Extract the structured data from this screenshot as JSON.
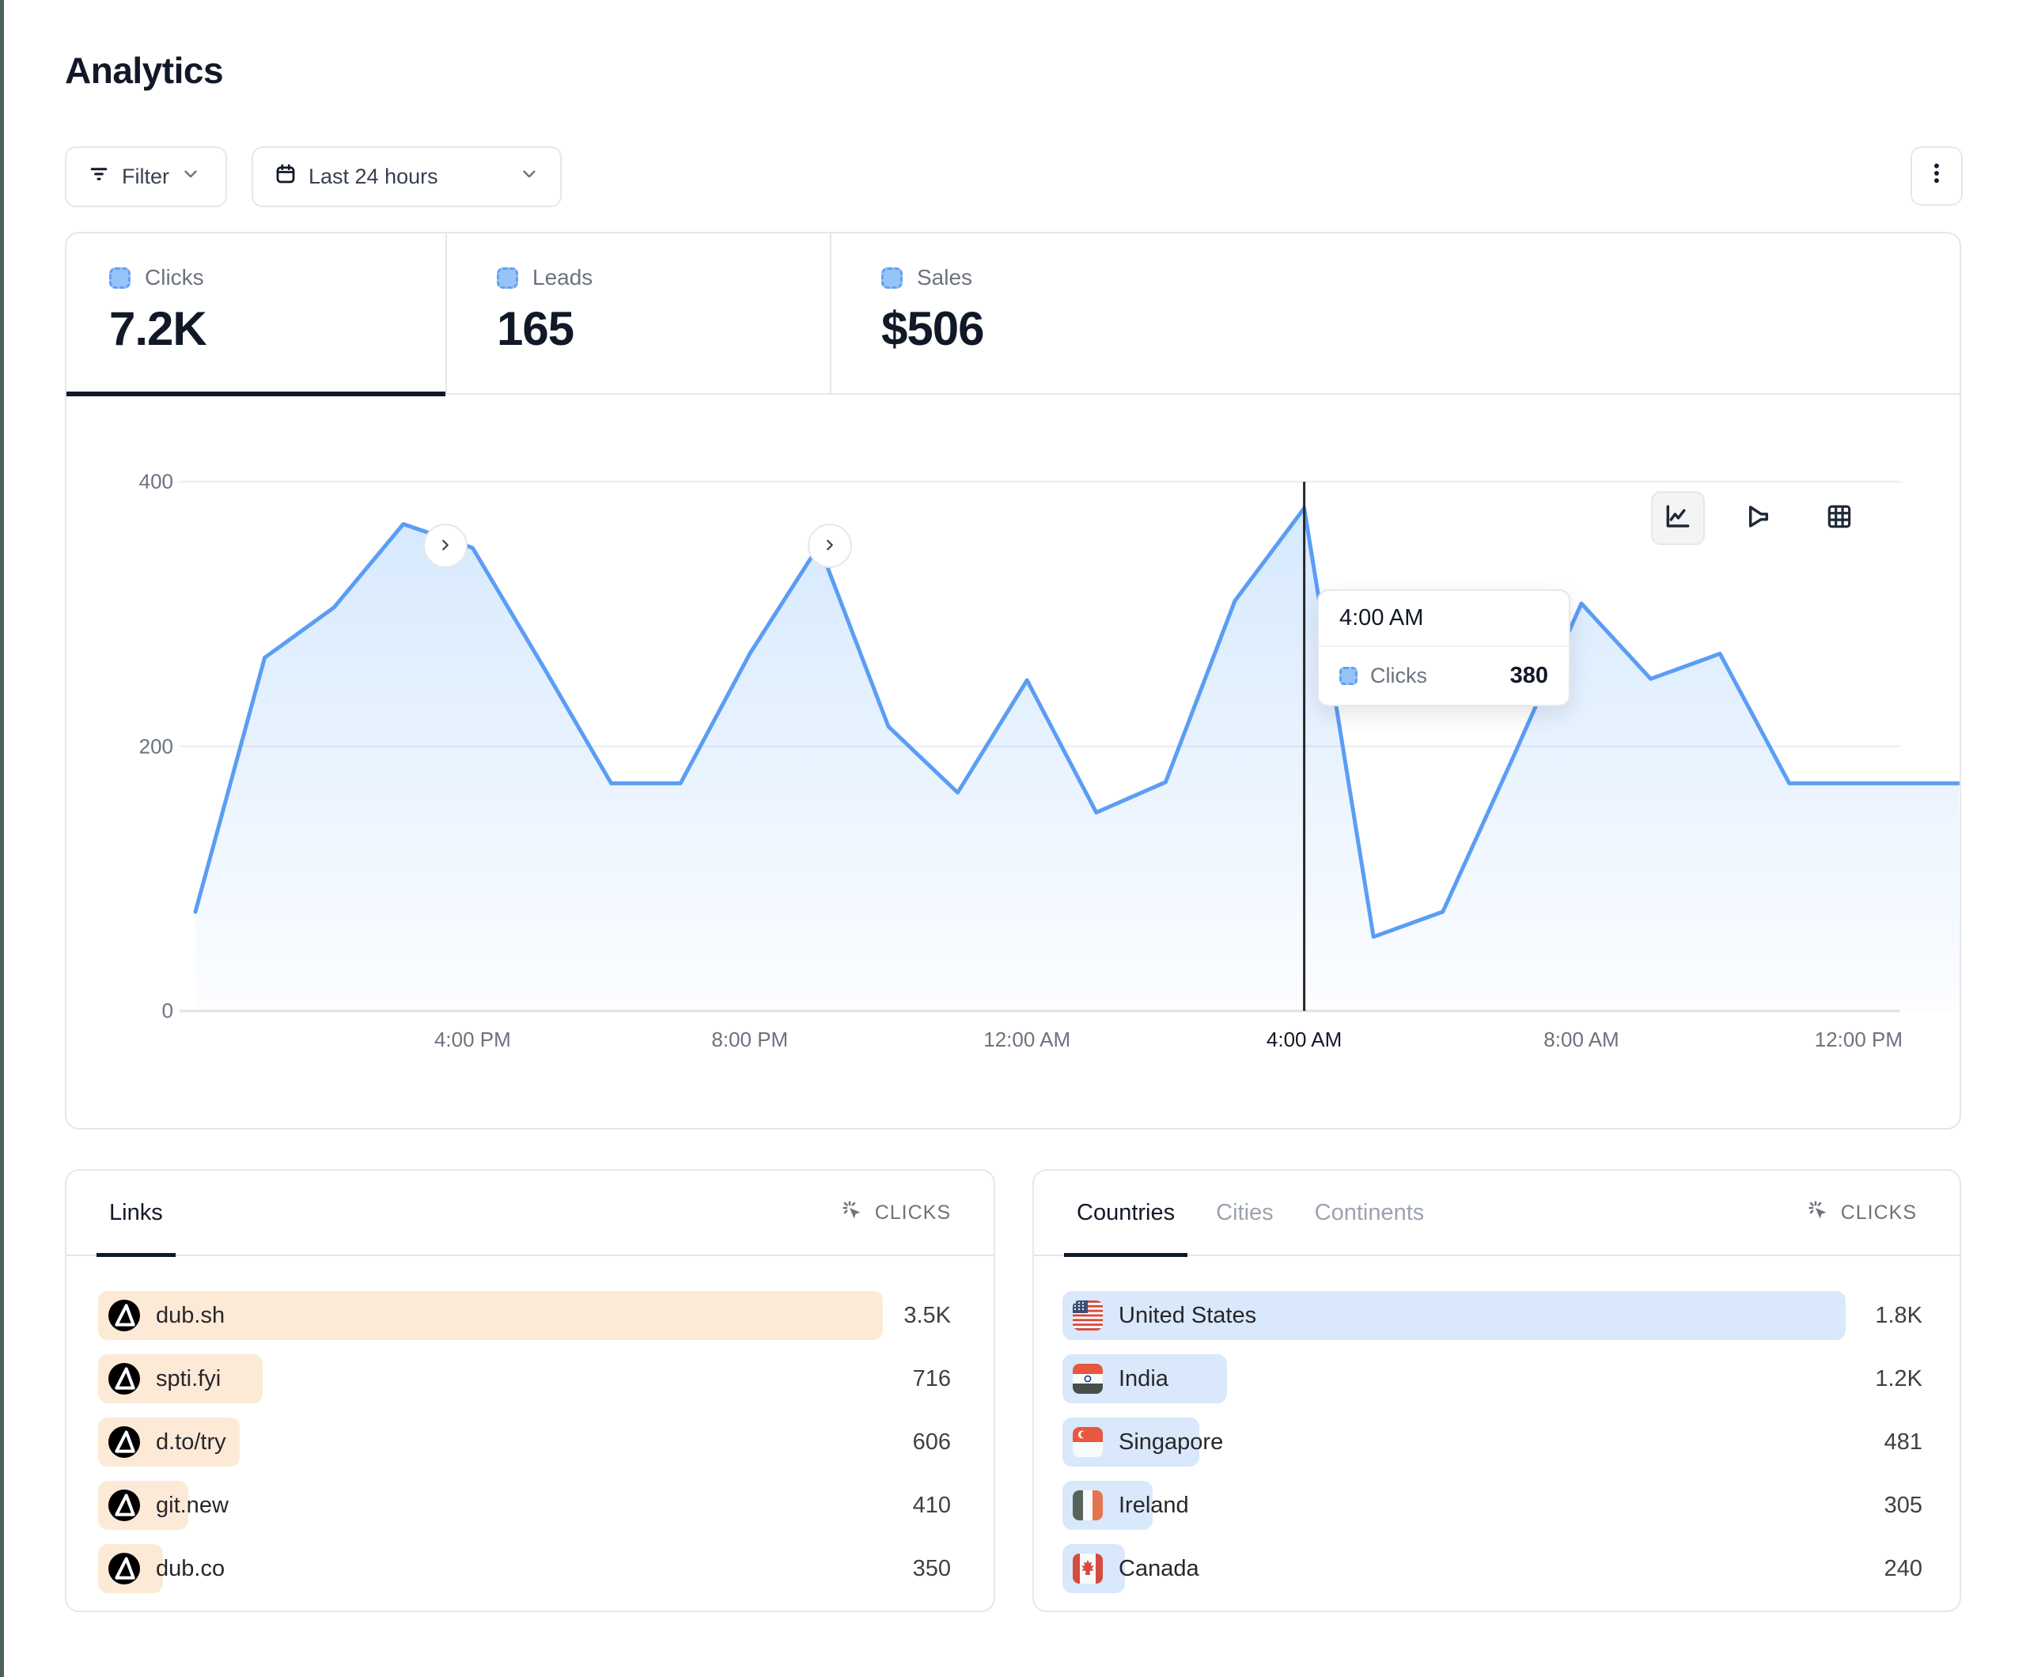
{
  "page": {
    "title": "Analytics"
  },
  "toolbar": {
    "filter_label": "Filter",
    "date_label": "Last 24 hours",
    "filter_icon": "filter-lines-icon",
    "date_icon": "calendar-icon",
    "menu_icon": "kebab-menu-icon"
  },
  "stats": [
    {
      "label": "Clicks",
      "value": "7.2K",
      "active": true
    },
    {
      "label": "Leads",
      "value": "165",
      "active": false
    },
    {
      "label": "Sales",
      "value": "$506",
      "active": false
    }
  ],
  "view_switcher": [
    "line-chart-icon",
    "funnel-chart-icon",
    "grid-table-icon"
  ],
  "chart_data": {
    "type": "area",
    "series_name": "Clicks",
    "x": [
      "12:00 PM",
      "1:00 PM",
      "2:00 PM",
      "3:00 PM",
      "4:00 PM",
      "5:00 PM",
      "6:00 PM",
      "7:00 PM",
      "8:00 PM",
      "9:00 PM",
      "10:00 PM",
      "11:00 PM",
      "12:00 AM",
      "1:00 AM",
      "2:00 AM",
      "3:00 AM",
      "4:00 AM",
      "5:00 AM",
      "6:00 AM",
      "7:00 AM",
      "8:00 AM",
      "9:00 AM",
      "10:00 AM",
      "11:00 AM",
      "12:00 PM"
    ],
    "values": [
      75,
      267,
      305,
      368,
      350,
      262,
      172,
      172,
      270,
      352,
      215,
      165,
      250,
      150,
      173,
      310,
      380,
      56,
      75,
      190,
      308,
      251,
      270,
      172,
      172
    ],
    "ylim": [
      0,
      400
    ],
    "y_ticks": [
      "0",
      "200",
      "400"
    ],
    "x_tick_labels": [
      "4:00 PM",
      "8:00 PM",
      "12:00 AM",
      "4:00 AM",
      "8:00 AM",
      "12:00 PM"
    ],
    "x_tick_hours": [
      4,
      8,
      12,
      16,
      20,
      24
    ],
    "highlighted_x_label": "4:00 AM",
    "grid": true,
    "line_color": "#5b9df5",
    "area_color": "#93c5fd",
    "crosshair_hour": 16,
    "tooltip": {
      "time": "4:00 AM",
      "series_label": "Clicks",
      "value": "380"
    }
  },
  "links_panel": {
    "title": "Links",
    "metric_label": "CLICKS",
    "metric_icon": "click-cursor-icon",
    "rows": [
      {
        "label": "dub.sh",
        "value": "3.5K",
        "bar_percent": 100,
        "icon": "dub-logo"
      },
      {
        "label": "spti.fyi",
        "value": "716",
        "bar_percent": 21,
        "icon": "dub-logo"
      },
      {
        "label": "d.to/try",
        "value": "606",
        "bar_percent": 18,
        "icon": "dub-logo"
      },
      {
        "label": "git.new",
        "value": "410",
        "bar_percent": 11.5,
        "icon": "dub-logo"
      },
      {
        "label": "dub.co",
        "value": "350",
        "bar_percent": 8.3,
        "icon": "dub-logo"
      }
    ]
  },
  "countries_panel": {
    "tabs": [
      "Countries",
      "Cities",
      "Continents"
    ],
    "active_tab": "Countries",
    "metric_label": "CLICKS",
    "metric_icon": "click-cursor-icon",
    "rows": [
      {
        "label": "United States",
        "value": "1.8K",
        "bar_percent": 100,
        "flag": "us"
      },
      {
        "label": "India",
        "value": "1.2K",
        "bar_percent": 21,
        "flag": "in"
      },
      {
        "label": "Singapore",
        "value": "481",
        "bar_percent": 17.5,
        "flag": "sg"
      },
      {
        "label": "Ireland",
        "value": "305",
        "bar_percent": 11.5,
        "flag": "ie"
      },
      {
        "label": "Canada",
        "value": "240",
        "bar_percent": 8,
        "flag": "ca"
      }
    ]
  },
  "colors": {
    "accent_blue": "#5b9df5",
    "legend_square": "#97c4f8",
    "link_bar": "#fcead7",
    "country_bar": "#d9e8fb",
    "border": "#e5e7eb",
    "text_dark": "#111827",
    "text_gray": "#6b7280",
    "crosshair": "#27272a",
    "edge_strip": "#4a6361"
  }
}
